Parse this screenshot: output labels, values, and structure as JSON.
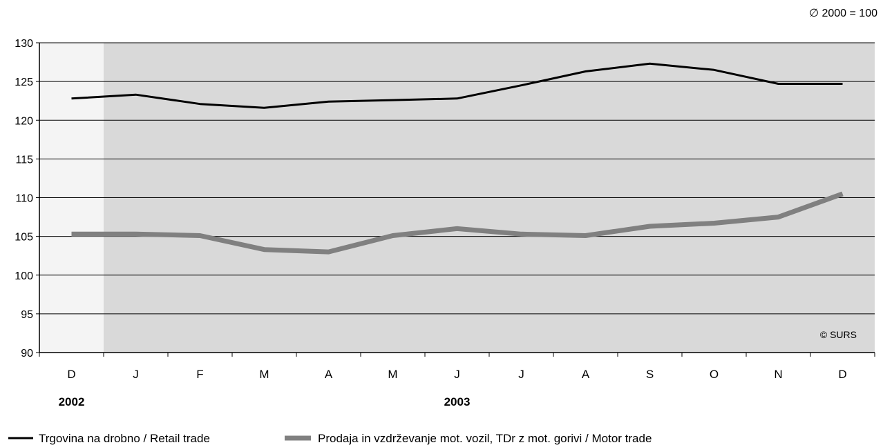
{
  "chart_data": {
    "type": "line",
    "base_note": "∅ 2000 = 100",
    "watermark": "© SURS",
    "categories": [
      "D",
      "J",
      "F",
      "M",
      "A",
      "M",
      "J",
      "J",
      "A",
      "S",
      "O",
      "N",
      "D"
    ],
    "year_labels": [
      {
        "label": "2002",
        "category_index": 0
      },
      {
        "label": "2003",
        "category_index": 6
      }
    ],
    "ylim": [
      90,
      130
    ],
    "yticks": [
      90,
      95,
      100,
      105,
      110,
      115,
      120,
      125,
      130
    ],
    "grid": true,
    "highlight": {
      "from_category_index": 1,
      "to_category_index": 12,
      "color": "#d9d9d9"
    },
    "unshaded_color": "#f4f4f4",
    "legend_position": "bottom",
    "series": [
      {
        "name": "Trgovina na drobno / Retail trade",
        "color": "#000000",
        "values": [
          122.8,
          123.3,
          122.1,
          121.6,
          122.4,
          122.6,
          122.8,
          124.5,
          126.3,
          127.3,
          126.5,
          124.7,
          124.7
        ]
      },
      {
        "name": "Prodaja in vzdrževanje mot. vozil, TDr z mot. gorivi / Motor trade",
        "color": "#808080",
        "values": [
          105.3,
          105.3,
          105.1,
          103.3,
          103.0,
          105.1,
          106.0,
          105.3,
          105.1,
          106.3,
          106.7,
          107.5,
          110.5
        ]
      }
    ]
  }
}
